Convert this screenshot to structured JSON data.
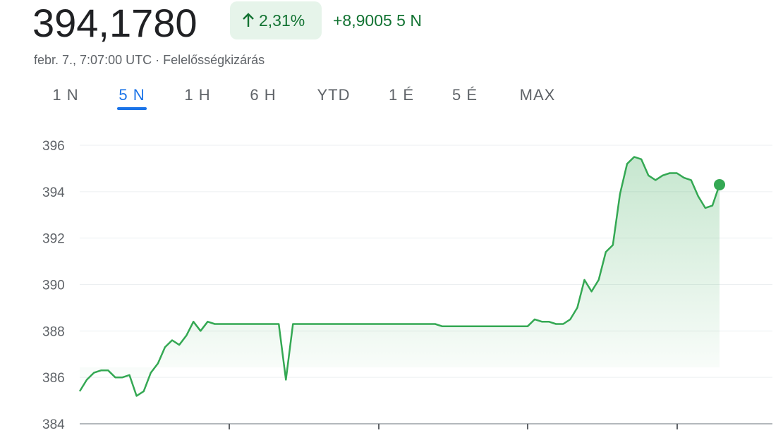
{
  "header": {
    "price": "394,1780",
    "change_percent": "2,31%",
    "change_abs": "+8,9005 5 N",
    "subtitle": "febr. 7., 7:07:00 UTC · Felelősségkizárás"
  },
  "tabs": [
    "1 N",
    "5 N",
    "1 H",
    "6 H",
    "YTD",
    "1 É",
    "5 É",
    "MAX"
  ],
  "selected_tab": 1,
  "chart_data": {
    "type": "line",
    "color": "#34a853",
    "grid": true,
    "ylim": [
      384,
      396
    ],
    "yticks": [
      384,
      386,
      388,
      390,
      392,
      394,
      396
    ],
    "values": [
      385.4,
      385.9,
      386.2,
      386.3,
      386.3,
      386.0,
      386.0,
      386.1,
      385.2,
      385.4,
      386.2,
      386.6,
      387.3,
      387.6,
      387.4,
      387.8,
      388.4,
      388.0,
      388.4,
      388.3,
      388.3,
      388.3,
      388.3,
      388.3,
      388.3,
      388.3,
      388.3,
      388.3,
      388.3,
      385.9,
      388.3,
      388.3,
      388.3,
      388.3,
      388.3,
      388.3,
      388.3,
      388.3,
      388.3,
      388.3,
      388.3,
      388.3,
      388.3,
      388.3,
      388.3,
      388.3,
      388.3,
      388.3,
      388.3,
      388.3,
      388.3,
      388.2,
      388.2,
      388.2,
      388.2,
      388.2,
      388.2,
      388.2,
      388.2,
      388.2,
      388.2,
      388.2,
      388.2,
      388.2,
      388.5,
      388.4,
      388.4,
      388.3,
      388.3,
      388.5,
      389.0,
      390.2,
      389.7,
      390.2,
      391.4,
      391.7,
      393.9,
      395.2,
      395.5,
      395.4,
      394.7,
      394.5,
      394.7,
      394.8,
      394.8,
      394.6,
      394.5,
      393.8,
      393.3,
      393.4,
      394.3
    ]
  }
}
